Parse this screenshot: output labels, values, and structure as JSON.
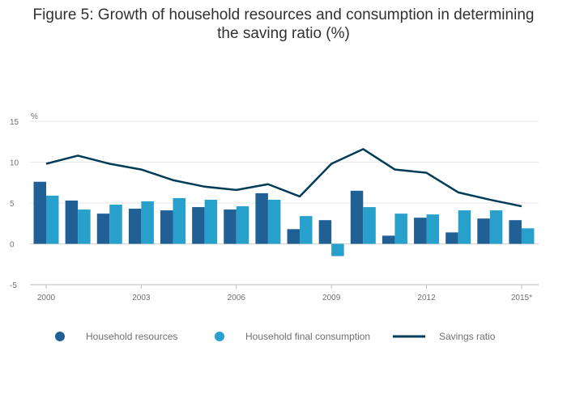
{
  "title_line1": "Figure 5: Growth of household resources and consumption in determining",
  "title_line2": "the saving ratio (%)",
  "chart_data": {
    "type": "bar",
    "title": "Figure 5: Growth of household resources and consumption in determining the saving ratio (%)",
    "ylabel": "%",
    "ylim": [
      -5,
      15
    ],
    "yticks": [
      -5,
      0,
      5,
      10,
      15
    ],
    "grid": true,
    "legend_position": "bottom",
    "categories": [
      "2000",
      "2001",
      "2002",
      "2003",
      "2004",
      "2005",
      "2006",
      "2007",
      "2008",
      "2009",
      "2010",
      "2011",
      "2012",
      "2013",
      "2014",
      "2015*"
    ],
    "xtick_labels": [
      "2000",
      "2003",
      "2006",
      "2009",
      "2012",
      "2015*"
    ],
    "series": [
      {
        "name": "Household resources",
        "type": "bar",
        "color": "#206095",
        "values": [
          7.6,
          5.3,
          3.7,
          4.3,
          4.1,
          4.5,
          4.2,
          6.2,
          1.8,
          2.9,
          6.5,
          1.0,
          3.2,
          1.4,
          3.1,
          2.9
        ]
      },
      {
        "name": "Household final consumption",
        "type": "bar",
        "color": "#27a0cc",
        "values": [
          5.9,
          4.2,
          4.8,
          5.2,
          5.6,
          5.4,
          4.6,
          5.4,
          3.4,
          -1.5,
          4.5,
          3.7,
          3.6,
          4.1,
          4.1,
          1.9
        ]
      },
      {
        "name": "Savings ratio",
        "type": "line",
        "color": "#003c57",
        "values": [
          9.8,
          10.8,
          9.8,
          9.1,
          7.8,
          7.0,
          6.6,
          7.3,
          5.8,
          9.8,
          11.6,
          9.1,
          8.7,
          6.3,
          5.4,
          4.6
        ]
      }
    ]
  }
}
